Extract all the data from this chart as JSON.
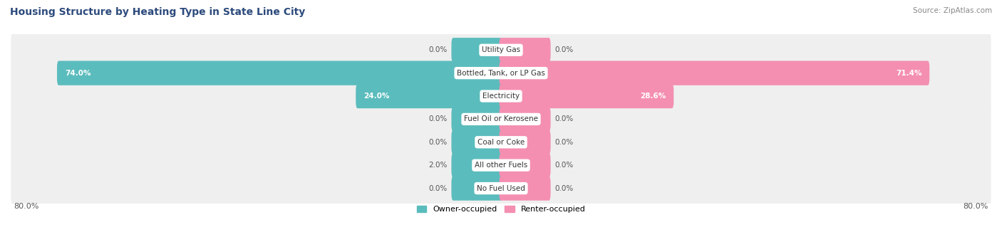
{
  "title": "Housing Structure by Heating Type in State Line City",
  "source": "Source: ZipAtlas.com",
  "categories": [
    "Utility Gas",
    "Bottled, Tank, or LP Gas",
    "Electricity",
    "Fuel Oil or Kerosene",
    "Coal or Coke",
    "All other Fuels",
    "No Fuel Used"
  ],
  "owner_values": [
    0.0,
    74.0,
    24.0,
    0.0,
    0.0,
    2.0,
    0.0
  ],
  "renter_values": [
    0.0,
    71.4,
    28.6,
    0.0,
    0.0,
    0.0,
    0.0
  ],
  "owner_color": "#5bbcbd",
  "renter_color": "#f48fb1",
  "row_bg_color": "#efefef",
  "row_bg_color_alt": "#e8e8e8",
  "axis_label_left": "80.0%",
  "axis_label_right": "80.0%",
  "max_val": 80.0,
  "min_bar_width": 8.0,
  "title_fontsize": 10,
  "source_fontsize": 7.5,
  "bar_label_fontsize": 7.5,
  "cat_label_fontsize": 7.5,
  "axis_fontsize": 8,
  "large_threshold": 10.0
}
